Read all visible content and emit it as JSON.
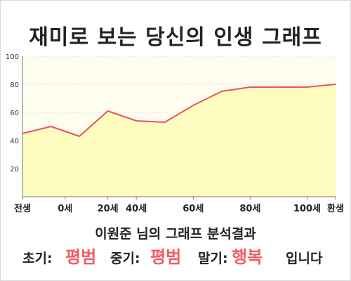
{
  "title": "재미로 보는 당신의 인생 그래프",
  "subtitle": "이원준 님의 그래프 분석결과",
  "result": {
    "early_label": "초기:",
    "early_value": "평범",
    "mid_label": "중기:",
    "mid_value": "평범",
    "late_label": "말기:",
    "late_value": "행복",
    "ending": "입니다"
  },
  "colors": {
    "fill": "#fffcc0",
    "plot_bg": "#fffdf0",
    "line": "#e8545a",
    "grid": "#dcdcdc",
    "highlight": "#f25c63"
  },
  "chart_data": {
    "type": "area",
    "x": [
      0,
      1,
      2,
      3,
      4,
      5,
      6,
      7,
      8,
      9,
      10,
      11
    ],
    "values": [
      45,
      50,
      43,
      61,
      54,
      53,
      65,
      75,
      78,
      78,
      78,
      80
    ],
    "x_tick_labels": [
      "전생",
      "0세",
      "20세",
      "40세",
      "60세",
      "80세",
      "100세",
      "환생"
    ],
    "x_tick_positions": [
      0,
      1.5,
      3,
      4,
      6,
      8,
      10,
      11
    ],
    "y_ticks": [
      20,
      40,
      60,
      80,
      100
    ],
    "ylim": [
      0,
      100
    ],
    "grid": true
  }
}
